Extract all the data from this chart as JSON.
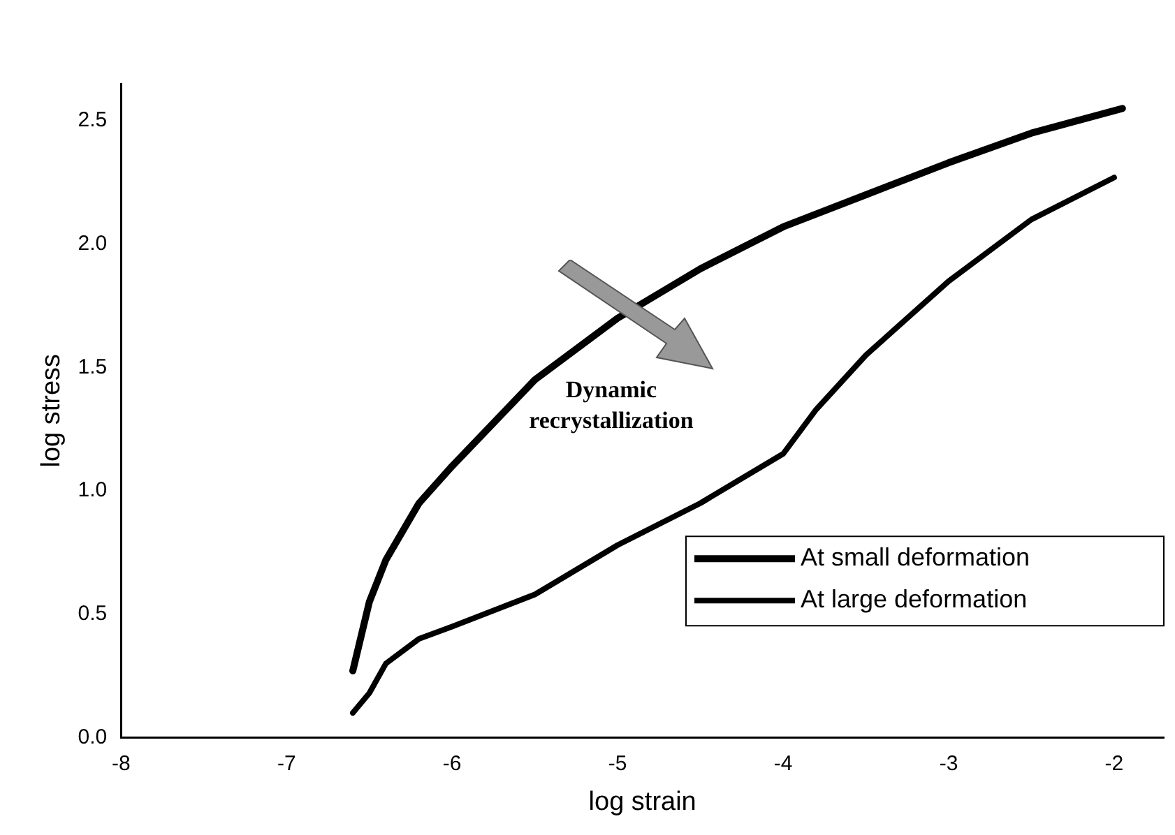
{
  "chart_data": {
    "type": "line",
    "xlabel": "log strain",
    "ylabel": "log stress",
    "xlim": [
      -8,
      -1.7
    ],
    "ylim": [
      0,
      2.65
    ],
    "xticks": [
      -8,
      -7,
      -6,
      -5,
      -4,
      -3,
      -2
    ],
    "yticks": [
      {
        "value": 0,
        "label": "0.0"
      },
      {
        "value": 0.5,
        "label": "0.5"
      },
      {
        "value": 1,
        "label": "1.0"
      },
      {
        "value": 1.5,
        "label": "1.5"
      },
      {
        "value": 2,
        "label": "2.0"
      },
      {
        "value": 2.5,
        "label": "2.5"
      }
    ],
    "series": [
      {
        "name": "At small deformation",
        "color": "#000000",
        "x": [
          -6.6,
          -6.5,
          -6.4,
          -6.2,
          -6,
          -5.5,
          -5,
          -4.5,
          -4,
          -3.5,
          -3,
          -2.5,
          -1.95
        ],
        "values": [
          0.27,
          0.55,
          0.72,
          0.95,
          1.1,
          1.45,
          1.7,
          1.9,
          2.07,
          2.2,
          2.33,
          2.45,
          2.55
        ]
      },
      {
        "name": "At large deformation",
        "color": "#000000",
        "x": [
          -6.6,
          -6.5,
          -6.4,
          -6.2,
          -6,
          -5.5,
          -5,
          -4.5,
          -4,
          -3.8,
          -3.5,
          -3,
          -2.5,
          -2
        ],
        "values": [
          0.1,
          0.18,
          0.3,
          0.4,
          0.45,
          0.58,
          0.78,
          0.95,
          1.15,
          1.33,
          1.55,
          1.85,
          2.1,
          2.27
        ]
      }
    ],
    "annotations": [
      "Dynamic recrystallization"
    ],
    "legend": "right",
    "grid": false,
    "marker": "none",
    "line_style": "solid"
  }
}
